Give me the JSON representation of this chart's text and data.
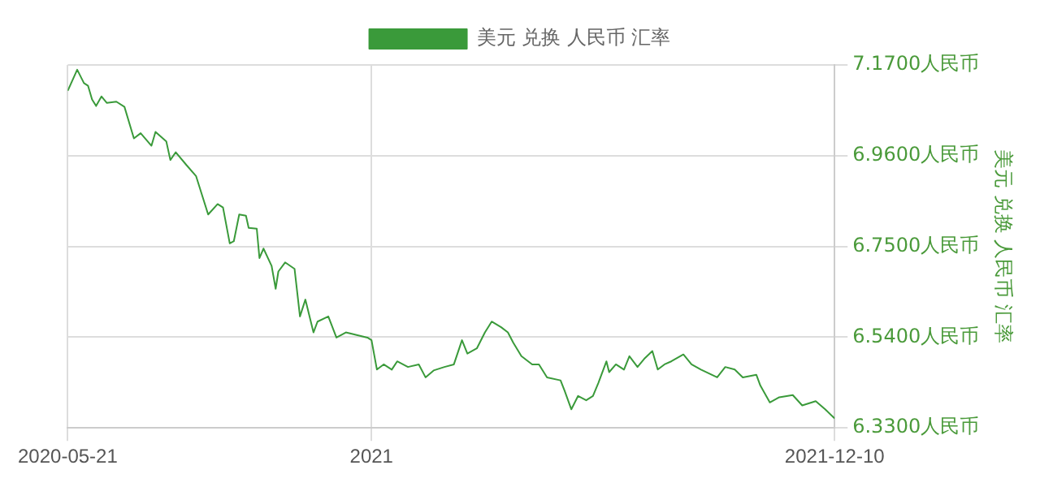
{
  "chart_data": {
    "type": "line",
    "ylabel": "美元 兑换 人民币 汇率",
    "x": [
      "2020-05-21",
      "2020-05-28",
      "2020-06-02",
      "2020-06-05",
      "2020-06-08",
      "2020-06-11",
      "2020-06-15",
      "2020-06-19",
      "2020-06-26",
      "2020-07-02",
      "2020-07-09",
      "2020-07-14",
      "2020-07-22",
      "2020-07-25",
      "2020-08-02",
      "2020-08-05",
      "2020-08-09",
      "2020-08-17",
      "2020-08-24",
      "2020-09-02",
      "2020-09-09",
      "2020-09-13",
      "2020-09-18",
      "2020-09-21",
      "2020-09-25",
      "2020-09-30",
      "2020-10-02",
      "2020-10-08",
      "2020-10-10",
      "2020-10-13",
      "2020-10-19",
      "2020-10-22",
      "2020-10-24",
      "2020-10-29",
      "2020-11-05",
      "2020-11-09",
      "2020-11-13",
      "2020-11-19",
      "2020-11-22",
      "2020-11-30",
      "2020-12-06",
      "2020-12-13",
      "2020-12-21",
      "2020-12-29",
      "2021-01-01",
      "2021-01-05",
      "2021-01-10",
      "2021-01-16",
      "2021-01-20",
      "2021-01-28",
      "2021-02-05",
      "2021-02-10",
      "2021-02-16",
      "2021-02-24",
      "2021-03-03",
      "2021-03-09",
      "2021-03-13",
      "2021-03-20",
      "2021-03-26",
      "2021-03-31",
      "2021-04-07",
      "2021-04-12",
      "2021-04-16",
      "2021-04-22",
      "2021-04-30",
      "2021-05-05",
      "2021-05-11",
      "2021-05-21",
      "2021-05-24",
      "2021-05-29",
      "2021-06-03",
      "2021-06-09",
      "2021-06-14",
      "2021-06-18",
      "2021-06-24",
      "2021-06-26",
      "2021-07-01",
      "2021-07-07",
      "2021-07-11",
      "2021-07-17",
      "2021-07-22",
      "2021-07-28",
      "2021-08-01",
      "2021-08-06",
      "2021-08-11",
      "2021-08-20",
      "2021-08-26",
      "2021-09-02",
      "2021-09-14",
      "2021-09-20",
      "2021-09-27",
      "2021-10-03",
      "2021-10-13",
      "2021-10-16",
      "2021-10-23",
      "2021-10-30",
      "2021-11-09",
      "2021-11-16",
      "2021-11-26",
      "2021-12-03",
      "2021-12-10"
    ],
    "series": [
      {
        "name": "美元 兑换 人民币 汇率",
        "color": "#3a9a3a",
        "values": [
          7.11,
          7.159,
          7.128,
          7.122,
          7.09,
          7.075,
          7.097,
          7.082,
          7.085,
          7.073,
          7.0,
          7.012,
          6.983,
          7.015,
          6.993,
          6.95,
          6.968,
          6.938,
          6.913,
          6.824,
          6.848,
          6.84,
          6.757,
          6.762,
          6.824,
          6.821,
          6.793,
          6.791,
          6.723,
          6.745,
          6.705,
          6.652,
          6.692,
          6.713,
          6.698,
          6.588,
          6.627,
          6.551,
          6.576,
          6.588,
          6.539,
          6.551,
          6.545,
          6.539,
          6.533,
          6.465,
          6.477,
          6.465,
          6.484,
          6.471,
          6.477,
          6.447,
          6.463,
          6.471,
          6.477,
          6.533,
          6.502,
          6.514,
          6.551,
          6.576,
          6.563,
          6.551,
          6.527,
          6.496,
          6.477,
          6.477,
          6.447,
          6.44,
          6.416,
          6.373,
          6.404,
          6.394,
          6.404,
          6.434,
          6.484,
          6.459,
          6.477,
          6.465,
          6.496,
          6.471,
          6.49,
          6.508,
          6.465,
          6.477,
          6.484,
          6.5,
          6.477,
          6.465,
          6.447,
          6.471,
          6.465,
          6.447,
          6.453,
          6.428,
          6.389,
          6.401,
          6.406,
          6.382,
          6.392,
          6.373,
          6.352
        ]
      }
    ],
    "xlim": [
      "2020-05-21",
      "2021-12-10"
    ],
    "xticks": [
      {
        "value": "2020-05-21",
        "label": "2020-05-21"
      },
      {
        "value": "2021-01-01",
        "label": "2021"
      },
      {
        "value": "2021-12-10",
        "label": "2021-12-10"
      }
    ],
    "ylim": [
      6.33,
      7.17
    ],
    "yticks": [
      {
        "value": 6.33,
        "label": "6.3300人民币"
      },
      {
        "value": 6.54,
        "label": "6.5400人民币"
      },
      {
        "value": 6.75,
        "label": "6.7500人民币"
      },
      {
        "value": 6.96,
        "label": "6.9600人民币"
      },
      {
        "value": 7.17,
        "label": "7.1700人民币"
      }
    ],
    "grid": true,
    "legend": "top",
    "marker": "none"
  }
}
